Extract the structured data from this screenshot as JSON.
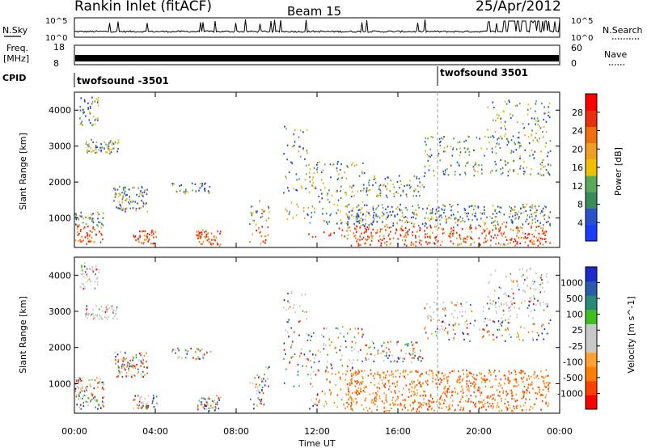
{
  "header": {
    "station": "Rankin Inlet (fitACF)",
    "beam": "Beam 15",
    "date": "25/Apr/2012"
  },
  "top_panels": {
    "noise": {
      "left_label": "N.Sky",
      "right_label": "N.Search",
      "tick_top": "10^5",
      "tick_bottom": "10^0",
      "right_tick_top": "10^5",
      "right_tick_bottom": "10^0"
    },
    "freq": {
      "left_label_1": "Freq.",
      "left_label_2": "[MHz]",
      "tick_top": "18",
      "tick_bottom": "8",
      "right_label": "Nave",
      "right_tick_top": "60",
      "right_tick_bottom": "0"
    },
    "cpid": {
      "label": "CPID",
      "segments": [
        "twofsound -3501",
        "twofsound 3501"
      ]
    }
  },
  "colors": {
    "power": [
      "#1a3cff",
      "#2a52c8",
      "#3a8a5a",
      "#5aa85a",
      "#f0c000",
      "#f0a020",
      "#f07010",
      "#e83010",
      "#ff0000"
    ],
    "velocity": [
      "#ff0000",
      "#ff4000",
      "#ff8000",
      "#ffa030",
      "#c8c8c8",
      "#c8c8c8",
      "#40c020",
      "#2a8a7a",
      "#2a5aaa",
      "#1a2acc"
    ]
  },
  "chart_data": [
    {
      "type": "heatmap",
      "name": "Power panel",
      "ylabel": "Slant Range [km]",
      "yticks": [
        "1000",
        "2000",
        "3000",
        "4000"
      ],
      "ylim": [
        180,
        4500
      ],
      "xlim": [
        "00:00",
        "24:00"
      ],
      "colorbar": {
        "label": "Power [dB]",
        "ticks": [
          "4",
          "8",
          "12",
          "16",
          "20",
          "24",
          "28"
        ],
        "range": [
          0,
          32
        ]
      }
    },
    {
      "type": "heatmap",
      "name": "Velocity panel",
      "ylabel": "Slant Range [km]",
      "yticks": [
        "1000",
        "2000",
        "3000",
        "4000"
      ],
      "ylim": [
        180,
        4500
      ],
      "xlim": [
        "00:00",
        "24:00"
      ],
      "xlabel": "Time UT",
      "xticks": [
        "00:00",
        "04:00",
        "08:00",
        "12:00",
        "16:00",
        "20:00",
        "00:00"
      ],
      "colorbar": {
        "label": "Velocity [m s^-1]",
        "ticks": [
          "1000",
          "500",
          "100",
          "25",
          "-25",
          "-100",
          "-500",
          "-1000"
        ]
      }
    }
  ]
}
